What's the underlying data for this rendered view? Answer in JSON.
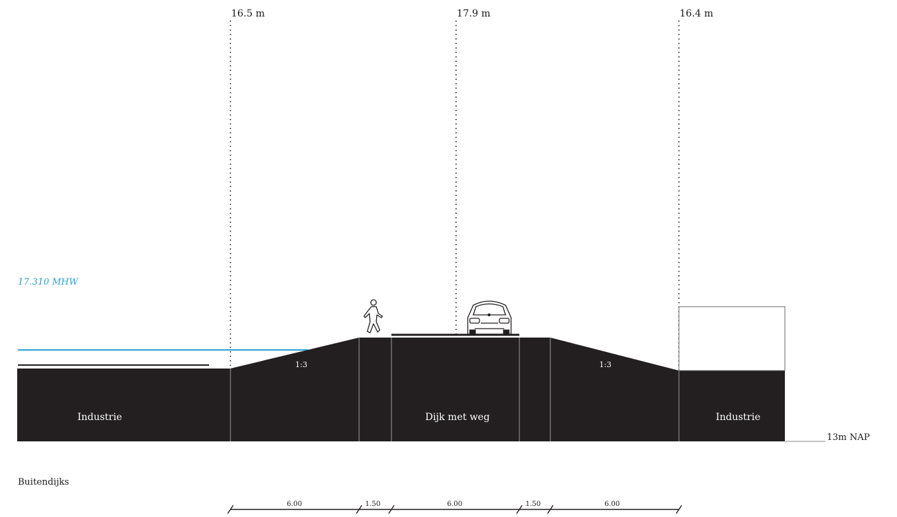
{
  "levels": [
    {
      "label": "16.5 m"
    },
    {
      "label": "17.9 m"
    },
    {
      "label": "16.4 m"
    }
  ],
  "water": {
    "label": "17.310 MHW",
    "color": "#2aa3d8"
  },
  "zones": {
    "left": "Industrie",
    "center": "Dijk met weg",
    "right": "Industrie"
  },
  "slopes": {
    "left": "1:3",
    "right": "1:3"
  },
  "datum": "13m NAP",
  "side_label": "Buitendijks",
  "dimensions": [
    "6.00",
    "1.50",
    "6.00",
    "1.50",
    "6.00"
  ],
  "colors": {
    "ground": "#231f20",
    "divider": "#9a9a9a",
    "ink": "#1a1a1a"
  },
  "figures": {
    "person": "walking-person-icon",
    "car": "car-front-icon",
    "building": "building-outline"
  }
}
